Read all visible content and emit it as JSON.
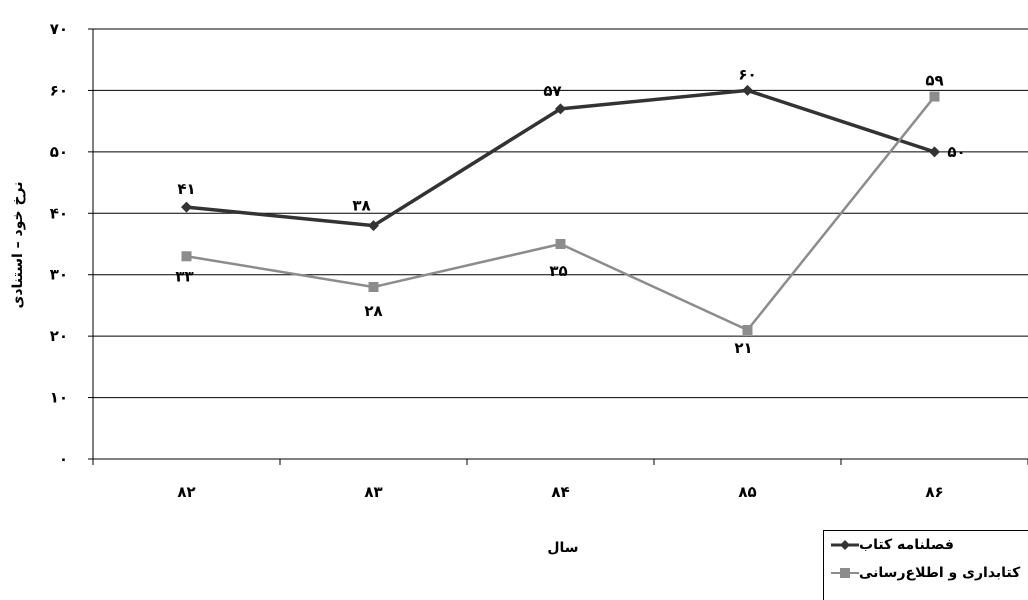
{
  "chart_data": {
    "type": "line",
    "categories": [
      "۸۲",
      "۸۳",
      "۸۴",
      "۸۵",
      "۸۶"
    ],
    "series": [
      {
        "name": "فصلنامه کتاب",
        "values": [
          41,
          38,
          57,
          60,
          50
        ],
        "labels": [
          "۴۱",
          "۳۸",
          "۵۷",
          "۶۰",
          "۵۰"
        ],
        "color": "#333333",
        "marker": "diamond"
      },
      {
        "name": "کتابداری و اطلاع‌رسانی",
        "values": [
          33,
          28,
          35,
          21,
          59
        ],
        "labels": [
          "۳۳",
          "۲۸",
          "۳۵",
          "۲۱",
          "۵۹"
        ],
        "color": "#8c8c8c",
        "marker": "square"
      }
    ],
    "xlabel": "سال",
    "ylabel": "نرخ خود – استنادی",
    "ylim": [
      0,
      70
    ],
    "yticks": [
      0,
      10,
      20,
      30,
      40,
      50,
      60,
      70
    ],
    "ytick_labels": [
      "۰",
      "۱۰",
      "۲۰",
      "۳۰",
      "۴۰",
      "۵۰",
      "۶۰",
      "۷۰"
    ],
    "grid": true,
    "legend_position": "bottom-right"
  }
}
